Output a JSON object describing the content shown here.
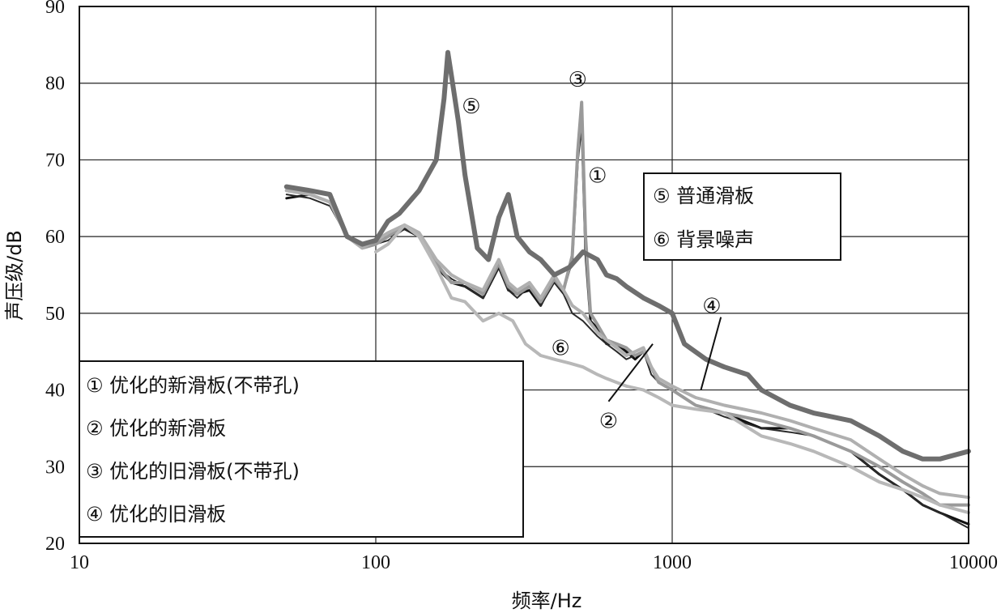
{
  "chart_data": {
    "type": "line",
    "xlabel": "频率/Hz",
    "ylabel": "声压级/dB",
    "xscale": "log",
    "xlim": [
      10,
      10000
    ],
    "ylim": [
      20,
      90
    ],
    "xticks": [
      10,
      100,
      1000,
      10000
    ],
    "xtick_labels": [
      "10",
      "100",
      "1000",
      "10000"
    ],
    "yticks": [
      20,
      30,
      40,
      50,
      60,
      70,
      80,
      90
    ],
    "ytick_labels": [
      "20",
      "30",
      "40",
      "50",
      "60",
      "70",
      "80",
      "90"
    ],
    "grid": true,
    "legend_left": {
      "placement": "bottom-left",
      "entries": [
        "① 优化的新滑板(不带孔)",
        "② 优化的新滑板",
        "③ 优化的旧滑板(不带孔)",
        "④ 优化的旧滑板"
      ]
    },
    "legend_right": {
      "placement": "upper-right",
      "entries": [
        "⑤ 普通滑板",
        "⑥ 背景噪声"
      ]
    },
    "series": [
      {
        "color": "#111111",
        "x": [
          50,
          60,
          70,
          80,
          90,
          100,
          110,
          125,
          140,
          160,
          180,
          200,
          230,
          260,
          280,
          300,
          330,
          360,
          400,
          430,
          460,
          480,
          495,
          510,
          530,
          560,
          600,
          650,
          700,
          750,
          800,
          850,
          900,
          1000,
          1200,
          1500,
          2000,
          2500,
          3000,
          4000,
          5000,
          6000,
          7000,
          8000,
          10000
        ],
        "y": [
          65,
          65.5,
          64.5,
          60,
          58.5,
          59,
          60,
          61,
          60,
          56,
          54,
          53.5,
          52,
          56,
          53,
          52.5,
          53,
          51,
          54.5,
          53,
          57,
          70,
          75,
          58,
          49,
          48,
          46,
          46,
          45,
          44,
          45,
          43,
          41,
          40,
          38,
          37,
          35,
          35,
          34,
          32,
          29,
          27,
          25,
          24,
          22.5
        ]
      },
      {
        "color": "#2a2a2a",
        "x": [
          50,
          60,
          70,
          80,
          90,
          100,
          110,
          125,
          140,
          160,
          180,
          200,
          230,
          260,
          280,
          300,
          330,
          360,
          400,
          430,
          460,
          500,
          560,
          600,
          650,
          700,
          750,
          800,
          850,
          900,
          1000,
          1200,
          1500,
          2000,
          2500,
          3000,
          4000,
          5000,
          6000,
          7000,
          8000,
          10000
        ],
        "y": [
          65.5,
          65,
          64,
          60,
          58.5,
          59,
          59.5,
          61,
          60,
          56,
          54.5,
          53.5,
          52,
          56,
          53,
          52,
          53.5,
          51,
          54,
          52.5,
          50,
          49,
          47,
          46,
          45,
          44,
          44.5,
          45,
          42,
          41,
          40,
          38,
          36.5,
          35,
          34.5,
          34,
          32,
          29,
          27,
          25,
          24,
          22
        ]
      },
      {
        "color": "#9a9a9a",
        "x": [
          50,
          60,
          70,
          80,
          90,
          100,
          110,
          125,
          140,
          160,
          180,
          200,
          230,
          260,
          280,
          300,
          330,
          360,
          400,
          430,
          460,
          480,
          495,
          510,
          530,
          560,
          600,
          650,
          700,
          750,
          800,
          850,
          900,
          1000,
          1200,
          1500,
          2000,
          2500,
          3000,
          4000,
          5000,
          6000,
          7000,
          8000,
          10000
        ],
        "y": [
          66,
          65.5,
          64.5,
          60,
          58.5,
          59,
          60,
          61.5,
          60,
          56.5,
          54,
          54,
          52.5,
          56.5,
          53.5,
          52.5,
          53.5,
          51.5,
          54.5,
          53,
          57.5,
          71,
          77.5,
          60,
          50,
          48.5,
          46.5,
          46,
          45.5,
          44.5,
          45,
          43,
          41,
          40,
          38,
          37,
          36,
          35,
          34,
          32,
          30,
          28,
          26.5,
          25,
          25
        ]
      },
      {
        "color": "#b0b0b0",
        "x": [
          50,
          60,
          70,
          80,
          90,
          100,
          110,
          125,
          140,
          160,
          180,
          200,
          230,
          260,
          280,
          300,
          330,
          360,
          400,
          430,
          460,
          500,
          560,
          600,
          650,
          700,
          750,
          800,
          850,
          900,
          1000,
          1200,
          1500,
          2000,
          2500,
          3000,
          4000,
          5000,
          6000,
          7000,
          8000,
          10000
        ],
        "y": [
          66,
          65.5,
          64.5,
          60,
          58.5,
          59.5,
          60.5,
          61.5,
          60.5,
          57,
          55,
          54,
          53,
          57,
          54,
          53,
          54,
          52,
          55,
          53,
          51,
          50,
          47.5,
          46.5,
          45.5,
          44.5,
          45,
          45.5,
          43,
          41.5,
          40.5,
          39,
          38,
          37,
          36,
          35,
          33.5,
          31,
          29,
          27.5,
          26.5,
          26
        ]
      },
      {
        "color": "#6e6e6e",
        "x": [
          50,
          60,
          70,
          80,
          90,
          100,
          110,
          120,
          140,
          160,
          170,
          175,
          180,
          190,
          200,
          220,
          240,
          260,
          280,
          300,
          330,
          360,
          400,
          450,
          500,
          560,
          600,
          650,
          700,
          800,
          900,
          1000,
          1100,
          1300,
          1500,
          1800,
          2000,
          2500,
          3000,
          4000,
          5000,
          6000,
          7000,
          8000,
          10000
        ],
        "y": [
          66.5,
          66,
          65.5,
          60,
          59,
          59.5,
          62,
          63,
          66,
          70,
          78,
          84,
          81,
          75,
          68,
          58.5,
          57,
          62.5,
          65.5,
          60,
          58,
          57,
          55,
          56,
          58,
          57,
          55,
          54.5,
          53.5,
          52,
          51,
          50,
          46,
          44,
          43,
          42,
          40,
          38,
          37,
          36,
          34,
          32,
          31,
          31,
          32
        ]
      },
      {
        "color": "#b8b8b8",
        "x": [
          100,
          110,
          125,
          140,
          160,
          180,
          200,
          230,
          260,
          290,
          320,
          360,
          400,
          450,
          500,
          560,
          600,
          700,
          800,
          900,
          1000,
          1200,
          1500,
          2000,
          2500,
          3000,
          4000,
          5000,
          6000,
          7000,
          8000,
          10000
        ],
        "y": [
          58,
          59,
          61.5,
          60,
          56,
          52,
          51.5,
          49,
          50,
          49,
          46,
          44.5,
          44,
          43.5,
          43,
          42,
          41.5,
          40.5,
          40,
          39,
          38,
          37.5,
          37,
          34,
          33,
          32,
          30,
          28,
          27,
          26,
          25,
          24
        ]
      }
    ],
    "markers": [
      {
        "label": "①",
        "x": 560,
        "y": 68
      },
      {
        "label": "②",
        "x": 610,
        "y": 36
      },
      {
        "label": "③",
        "x": 480,
        "y": 80.5
      },
      {
        "label": "④",
        "x": 1360,
        "y": 51
      },
      {
        "label": "⑤",
        "x": 210,
        "y": 77
      },
      {
        "label": "⑥",
        "x": 420,
        "y": 45.5
      }
    ],
    "leader_lines": [
      {
        "from": [
          610,
          38.5
        ],
        "to": [
          860,
          46
        ]
      },
      {
        "from": [
          1250,
          40
        ],
        "to": [
          1460,
          49.5
        ]
      }
    ]
  }
}
